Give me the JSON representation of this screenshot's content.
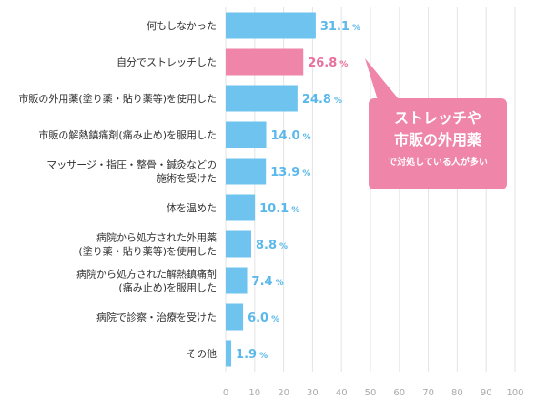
{
  "chart_data": {
    "type": "bar",
    "orientation": "horizontal",
    "categories": [
      [
        "何もしなかった"
      ],
      [
        "自分でストレッチした"
      ],
      [
        "市販の外用薬(塗り薬・貼り薬等)を使用した"
      ],
      [
        "市販の解熱鎮痛剤(痛み止め)を服用した"
      ],
      [
        "マッサージ・指圧・整骨・鍼灸などの",
        "施術を受けた"
      ],
      [
        "体を温めた"
      ],
      [
        "病院から処方された外用薬",
        "(塗り薬・貼り薬等)を使用した"
      ],
      [
        "病院から処方された解熱鎮痛剤",
        "(痛み止め)を服用した"
      ],
      [
        "病院で診察・治療を受けた"
      ],
      [
        "その他"
      ]
    ],
    "values": [
      31.1,
      26.8,
      24.8,
      14.0,
      13.9,
      10.1,
      8.8,
      7.4,
      6.0,
      1.9
    ],
    "value_unit": "%",
    "highlight_index": 1,
    "xlim": [
      0,
      100
    ],
    "xticks": [
      0,
      10,
      20,
      30,
      40,
      50,
      60,
      70,
      80,
      90,
      100
    ],
    "grid": true,
    "colors": {
      "bar": "#6ec3ef",
      "highlight": "#ef85a8",
      "value_text": "#5bb8ea",
      "highlight_text": "#e96f9c",
      "grid": "#e3e3e3"
    }
  },
  "callout": {
    "line1": "ストレッチや",
    "line2": "市販の外用薬",
    "line3": "で対処している人が多い",
    "color": "#ef85a8"
  }
}
